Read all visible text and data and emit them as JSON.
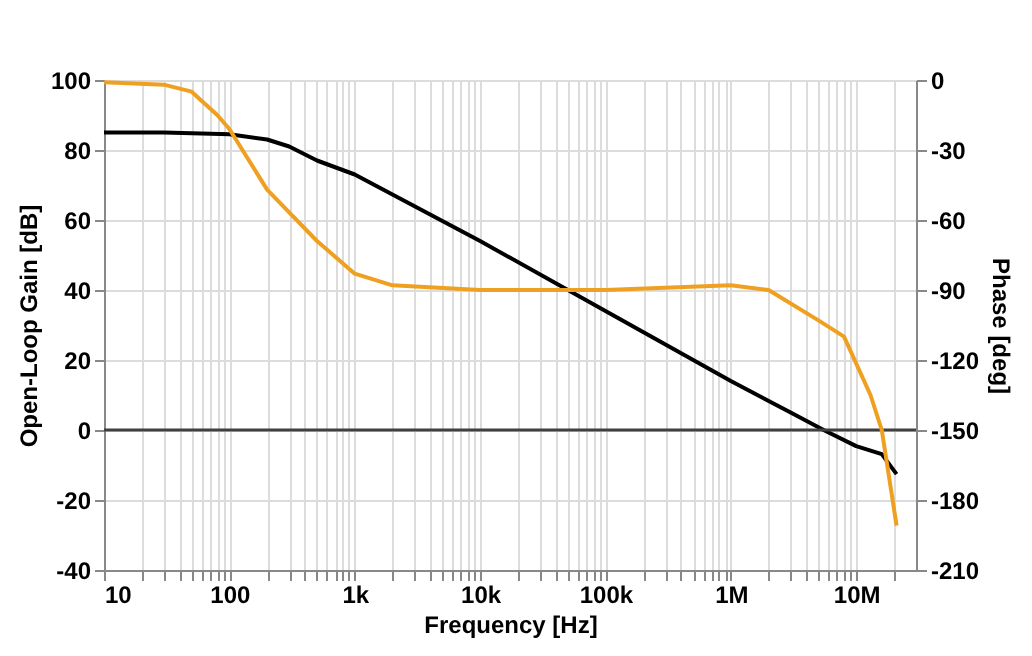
{
  "chart_data": {
    "type": "line",
    "xlabel": "Frequency [Hz]",
    "ylabel": "Open-Loop Gain [dB]",
    "y2label": "Phase [deg]",
    "log": "x",
    "grid": true,
    "line_style": "solid",
    "marker": "none",
    "xlim": [
      10,
      30000000
    ],
    "xticks": [
      {
        "value": 10,
        "label": "10"
      },
      {
        "value": 20,
        "label": null
      },
      {
        "value": 30,
        "label": null
      },
      {
        "value": 40,
        "label": null
      },
      {
        "value": 50,
        "label": null
      },
      {
        "value": 60,
        "label": null
      },
      {
        "value": 70,
        "label": null
      },
      {
        "value": 80,
        "label": null
      },
      {
        "value": 90,
        "label": null
      },
      {
        "value": 100,
        "label": "100"
      },
      {
        "value": 200,
        "label": null
      },
      {
        "value": 300,
        "label": null
      },
      {
        "value": 400,
        "label": null
      },
      {
        "value": 500,
        "label": null
      },
      {
        "value": 600,
        "label": null
      },
      {
        "value": 700,
        "label": null
      },
      {
        "value": 800,
        "label": null
      },
      {
        "value": 900,
        "label": null
      },
      {
        "value": 1000,
        "label": "1k"
      },
      {
        "value": 2000,
        "label": null
      },
      {
        "value": 3000,
        "label": null
      },
      {
        "value": 4000,
        "label": null
      },
      {
        "value": 5000,
        "label": null
      },
      {
        "value": 6000,
        "label": null
      },
      {
        "value": 7000,
        "label": null
      },
      {
        "value": 8000,
        "label": null
      },
      {
        "value": 9000,
        "label": null
      },
      {
        "value": 10000,
        "label": "10k"
      },
      {
        "value": 20000,
        "label": null
      },
      {
        "value": 30000,
        "label": null
      },
      {
        "value": 40000,
        "label": null
      },
      {
        "value": 50000,
        "label": null
      },
      {
        "value": 60000,
        "label": null
      },
      {
        "value": 70000,
        "label": null
      },
      {
        "value": 80000,
        "label": null
      },
      {
        "value": 90000,
        "label": null
      },
      {
        "value": 100000,
        "label": "100k"
      },
      {
        "value": 200000,
        "label": null
      },
      {
        "value": 300000,
        "label": null
      },
      {
        "value": 400000,
        "label": null
      },
      {
        "value": 500000,
        "label": null
      },
      {
        "value": 600000,
        "label": null
      },
      {
        "value": 700000,
        "label": null
      },
      {
        "value": 800000,
        "label": null
      },
      {
        "value": 900000,
        "label": null
      },
      {
        "value": 1000000,
        "label": "1M"
      },
      {
        "value": 2000000,
        "label": null
      },
      {
        "value": 3000000,
        "label": null
      },
      {
        "value": 4000000,
        "label": null
      },
      {
        "value": 5000000,
        "label": null
      },
      {
        "value": 6000000,
        "label": null
      },
      {
        "value": 7000000,
        "label": null
      },
      {
        "value": 8000000,
        "label": null
      },
      {
        "value": 9000000,
        "label": null
      },
      {
        "value": 10000000,
        "label": "10M"
      },
      {
        "value": 20000000,
        "label": null
      }
    ],
    "ylim": [
      -40,
      100
    ],
    "yticks": [
      -40,
      -20,
      0,
      20,
      40,
      60,
      80,
      100
    ],
    "y2lim": [
      -210,
      0
    ],
    "y2ticks": [
      -210,
      -180,
      -150,
      -120,
      -90,
      -60,
      -30,
      0
    ],
    "ref_lines": [
      {
        "axis": "y",
        "value": 0,
        "color": "#404040"
      }
    ],
    "series": [
      {
        "color": "#000000",
        "x": [
          10,
          30,
          100,
          200,
          300,
          500,
          1000,
          10000,
          100000,
          1000000,
          3000000,
          5500000,
          10000000,
          16000000,
          21000000
        ],
        "values": [
          85,
          85,
          84.5,
          83,
          81,
          77,
          73,
          54,
          34,
          14,
          5,
          0,
          -4.6,
          -6.9,
          -12.6
        ]
      },
      {
        "color": "#f0a020",
        "axis": "y2",
        "x": [
          10,
          30,
          50,
          80,
          100,
          200,
          500,
          1000,
          2000,
          10000,
          100000,
          1000000,
          2000000,
          5000000,
          8000000,
          13000000,
          16000000,
          21000000
        ],
        "values": [
          -1,
          -2,
          -5,
          -15,
          -21,
          -47,
          -69,
          -83,
          -88,
          -90,
          -90,
          -88,
          -90,
          -103,
          -110,
          -135,
          -150,
          -191
        ]
      }
    ]
  }
}
